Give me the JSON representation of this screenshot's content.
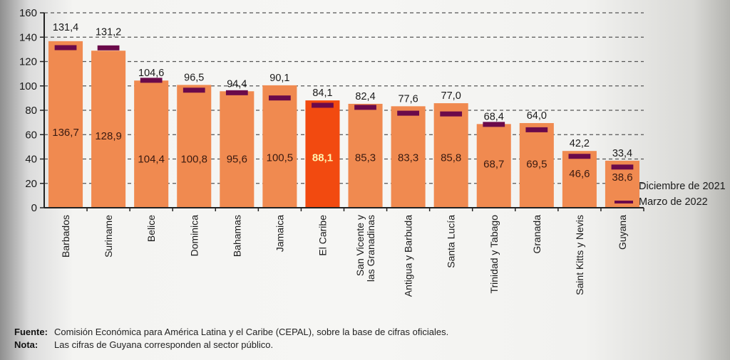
{
  "chart_data": {
    "type": "bar",
    "title": "",
    "xlabel": "",
    "ylabel": "",
    "ylim": [
      0,
      160
    ],
    "yticks": [
      0,
      20,
      40,
      60,
      80,
      100,
      120,
      140,
      160
    ],
    "grid": true,
    "legend_position": "right",
    "categories": [
      "Barbados",
      "Suriname",
      "Belice",
      "Dominica",
      "Bahamas",
      "Jamaica",
      "El Caribe",
      "San Vicente y las Granadinas",
      "Antigua y Barbuda",
      "Santa Lucía",
      "Trinidad y Tabago",
      "Granada",
      "Saint Kitts y Nevis",
      "Guyana"
    ],
    "category_lines": [
      [
        "Barbados"
      ],
      [
        "Suriname"
      ],
      [
        "Belice"
      ],
      [
        "Dominica"
      ],
      [
        "Bahamas"
      ],
      [
        "Jamaica"
      ],
      [
        "El Caribe"
      ],
      [
        "San Vicente y",
        "las Granadinas"
      ],
      [
        "Antigua y Barbuda"
      ],
      [
        "Santa Lucía"
      ],
      [
        "Trinidad y Tabago"
      ],
      [
        "Granada"
      ],
      [
        "Saint Kitts y Nevis"
      ],
      [
        "Guyana"
      ]
    ],
    "highlight_category": "El Caribe",
    "series": [
      {
        "name": "Diciembre de 2021",
        "kind": "bar",
        "color": "#f08a50",
        "highlight_color": "#f24a10",
        "values": [
          136.7,
          128.9,
          104.4,
          100.8,
          95.6,
          100.5,
          88.1,
          85.3,
          83.3,
          85.8,
          68.7,
          69.5,
          46.6,
          38.6
        ],
        "labels": [
          "136,7",
          "128,9",
          "104,4",
          "100,8",
          "95,6",
          "100,5",
          "88,1",
          "85,3",
          "83,3",
          "85,8",
          "68,7",
          "69,5",
          "46,6",
          "38,6"
        ]
      },
      {
        "name": "Marzo de 2022",
        "kind": "marker",
        "color": "#6b0a4a",
        "values": [
          131.4,
          131.2,
          104.6,
          96.5,
          94.4,
          90.1,
          84.1,
          82.4,
          77.6,
          77.0,
          68.4,
          64.0,
          42.2,
          33.4
        ],
        "labels": [
          "131,4",
          "131,2",
          "104,6",
          "96,5",
          "94,4",
          "90,1",
          "84,1",
          "82,4",
          "77,6",
          "77,0",
          "68,4",
          "64,0",
          "42,2",
          "33,4"
        ]
      }
    ]
  },
  "legend": {
    "items": [
      {
        "label": "Diciembre de 2021",
        "color": "#f08a50"
      },
      {
        "label": "Marzo de 2022",
        "color": "#6b0a4a"
      }
    ]
  },
  "notes": {
    "source_key": "Fuente",
    "source_text": "Comisión Económica para América Latina y el Caribe (CEPAL), sobre la base de cifras oficiales.",
    "note_key": "Nota",
    "note_text": "Las cifras de Guyana corresponden al sector público."
  }
}
